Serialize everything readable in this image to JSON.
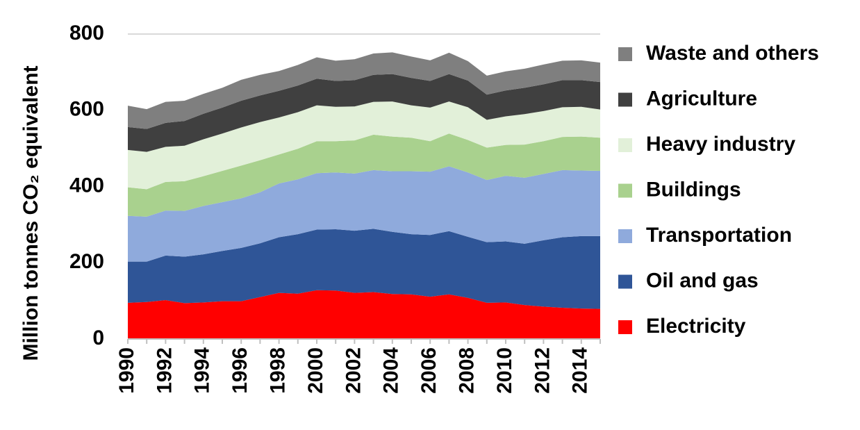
{
  "chart_data": {
    "type": "area",
    "stacked": true,
    "title": "",
    "xlabel": "",
    "ylabel": "Million tonnes CO₂ equivalent",
    "ylim": [
      0,
      800
    ],
    "yticks": [
      0,
      200,
      400,
      600,
      800
    ],
    "xlim": [
      1990,
      2015
    ],
    "xtick_labels": [
      "1990",
      "1992",
      "1994",
      "1996",
      "1998",
      "2000",
      "2002",
      "2004",
      "2006",
      "2008",
      "2010",
      "2012",
      "2014"
    ],
    "gridlines": "horizontal",
    "legend_position": "right",
    "x": [
      1990,
      1991,
      1992,
      1993,
      1994,
      1995,
      1996,
      1997,
      1998,
      1999,
      2000,
      2001,
      2002,
      2003,
      2004,
      2005,
      2006,
      2007,
      2008,
      2009,
      2010,
      2011,
      2012,
      2013,
      2014,
      2015
    ],
    "series": [
      {
        "name": "Electricity",
        "color": "#ff0000",
        "values": [
          95,
          97,
          102,
          94,
          96,
          99,
          99,
          110,
          121,
          119,
          128,
          127,
          121,
          123,
          118,
          117,
          111,
          117,
          108,
          95,
          96,
          89,
          85,
          82,
          80,
          79
        ]
      },
      {
        "name": "Oil and gas",
        "color": "#2f5597",
        "values": [
          108,
          106,
          117,
          122,
          126,
          132,
          140,
          141,
          146,
          156,
          159,
          161,
          163,
          166,
          163,
          158,
          162,
          166,
          160,
          159,
          160,
          161,
          174,
          185,
          190,
          191
        ]
      },
      {
        "name": "Transportation",
        "color": "#8faadc",
        "values": [
          120,
          118,
          118,
          120,
          127,
          128,
          130,
          134,
          141,
          144,
          148,
          149,
          150,
          154,
          159,
          165,
          166,
          170,
          169,
          163,
          172,
          173,
          174,
          176,
          172,
          171
        ]
      },
      {
        "name": "Buildings",
        "color": "#a9d18e",
        "values": [
          75,
          72,
          75,
          78,
          78,
          82,
          86,
          84,
          76,
          80,
          84,
          82,
          87,
          93,
          91,
          88,
          80,
          86,
          85,
          85,
          81,
          87,
          86,
          87,
          89,
          87
        ]
      },
      {
        "name": "Heavy industry",
        "color": "#e2f0d9",
        "values": [
          98,
          98,
          92,
          93,
          97,
          98,
          100,
          100,
          97,
          96,
          94,
          90,
          89,
          86,
          92,
          85,
          88,
          84,
          86,
          73,
          75,
          80,
          79,
          78,
          78,
          74
        ]
      },
      {
        "name": "Agriculture",
        "color": "#404040",
        "values": [
          60,
          60,
          63,
          65,
          67,
          68,
          70,
          70,
          70,
          70,
          70,
          68,
          69,
          71,
          72,
          72,
          70,
          72,
          70,
          66,
          68,
          69,
          70,
          71,
          70,
          72
        ]
      },
      {
        "name": "Waste and others",
        "color": "#7f7f7f",
        "values": [
          56,
          52,
          55,
          53,
          52,
          52,
          55,
          54,
          52,
          54,
          56,
          53,
          55,
          56,
          57,
          56,
          54,
          56,
          51,
          50,
          50,
          50,
          52,
          51,
          52,
          51
        ]
      }
    ]
  }
}
